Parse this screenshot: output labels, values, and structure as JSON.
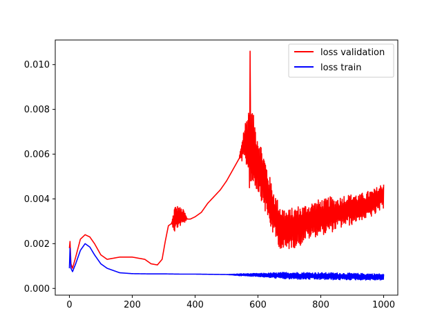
{
  "chart_data": {
    "type": "line",
    "title": "",
    "xlabel": "",
    "ylabel": "",
    "xlim": [
      -45,
      1045
    ],
    "ylim": [
      -0.0003,
      0.0111
    ],
    "xticks": [
      0,
      200,
      400,
      600,
      800,
      1000
    ],
    "xtick_labels": [
      "0",
      "200",
      "400",
      "600",
      "800",
      "1000"
    ],
    "yticks": [
      0.0,
      0.002,
      0.004,
      0.006,
      0.008,
      0.01
    ],
    "ytick_labels": [
      "0.000",
      "0.002",
      "0.004",
      "0.006",
      "0.008",
      "0.010"
    ],
    "grid": false,
    "legend_position": "top-right",
    "series": [
      {
        "name": "loss validation",
        "color": "#ff0000",
        "x": [
          0,
          2,
          5,
          10,
          20,
          35,
          50,
          65,
          80,
          100,
          120,
          140,
          160,
          180,
          200,
          220,
          240,
          260,
          280,
          295,
          305,
          315,
          325,
          335,
          345,
          355,
          365,
          375,
          385,
          400,
          420,
          440,
          460,
          480,
          500,
          520,
          540,
          555,
          565,
          575,
          585,
          595,
          605,
          615,
          625,
          635,
          645,
          655,
          665,
          675,
          685,
          695,
          705,
          715,
          725,
          735,
          745,
          755,
          765,
          775,
          785,
          795,
          805,
          815,
          825,
          835,
          845,
          855,
          865,
          875,
          885,
          895,
          905,
          915,
          925,
          935,
          945,
          955,
          965,
          975,
          985,
          995,
          1000
        ],
        "center": [
          0.0018,
          0.0021,
          0.0011,
          0.0009,
          0.0014,
          0.0022,
          0.0024,
          0.0023,
          0.002,
          0.0015,
          0.0013,
          0.00135,
          0.0014,
          0.0014,
          0.0014,
          0.00135,
          0.0013,
          0.0011,
          0.00105,
          0.0013,
          0.0021,
          0.0028,
          0.0029,
          0.0031,
          0.0032,
          0.0032,
          0.0032,
          0.0031,
          0.0031,
          0.0032,
          0.0034,
          0.0038,
          0.0041,
          0.0044,
          0.0048,
          0.0053,
          0.0058,
          0.0064,
          0.0066,
          0.0064,
          0.0062,
          0.0058,
          0.0054,
          0.005,
          0.0045,
          0.004,
          0.0036,
          0.0032,
          0.0029,
          0.0027,
          0.0026,
          0.0026,
          0.0027,
          0.0027,
          0.0028,
          0.0028,
          0.0029,
          0.003,
          0.003,
          0.0031,
          0.0031,
          0.0032,
          0.0032,
          0.0032,
          0.0033,
          0.0033,
          0.0033,
          0.0034,
          0.0034,
          0.0035,
          0.0035,
          0.0035,
          0.0036,
          0.0036,
          0.0036,
          0.0037,
          0.0037,
          0.0038,
          0.0038,
          0.0039,
          0.004,
          0.0041,
          0.0042
        ],
        "amplitude": [
          0,
          0,
          0,
          0,
          0,
          0,
          0,
          0,
          0,
          0,
          0,
          0,
          0,
          0,
          0,
          0,
          0,
          0,
          0,
          0,
          0,
          0,
          0,
          0.0006,
          0.0005,
          0.0004,
          0.0003,
          0,
          0,
          0,
          0,
          0,
          0,
          0,
          0,
          0,
          0,
          0.0008,
          0.0012,
          0.0022,
          0.0016,
          0.0014,
          0.0013,
          0.0012,
          0.0012,
          0.0011,
          0.0011,
          0.001,
          0.001,
          0.001,
          0.001,
          0.0009,
          0.0009,
          0.0009,
          0.0009,
          0.0009,
          0.0008,
          0.0008,
          0.0008,
          0.0008,
          0.0008,
          0.0008,
          0.0008,
          0.0008,
          0.0008,
          0.0008,
          0.0007,
          0.0007,
          0.0007,
          0.0007,
          0.0007,
          0.0007,
          0.0007,
          0.0006,
          0.0006,
          0.0006,
          0.0006,
          0.0006,
          0.0006,
          0.0006,
          0.0006,
          0.0006,
          0.0006
        ],
        "peak": {
          "x": 575,
          "y": 0.0106
        }
      },
      {
        "name": "loss train",
        "color": "#0000ff",
        "x": [
          0,
          2,
          5,
          10,
          20,
          35,
          50,
          65,
          80,
          100,
          120,
          140,
          160,
          180,
          200,
          250,
          300,
          350,
          400,
          450,
          500,
          550,
          600,
          650,
          700,
          750,
          800,
          850,
          900,
          950,
          1000
        ],
        "center": [
          0.0009,
          0.0018,
          0.0009,
          0.00075,
          0.0011,
          0.0017,
          0.002,
          0.00185,
          0.0015,
          0.0011,
          0.0009,
          0.0008,
          0.0007,
          0.00068,
          0.00066,
          0.00065,
          0.00065,
          0.00064,
          0.00064,
          0.00063,
          0.00062,
          0.00061,
          0.0006,
          0.00058,
          0.00057,
          0.00056,
          0.00055,
          0.00054,
          0.00053,
          0.00052,
          0.00051
        ],
        "amplitude": [
          0,
          0,
          0,
          0,
          0,
          0,
          0,
          0,
          0,
          0,
          0,
          0,
          0,
          0,
          0,
          0,
          0,
          0,
          0,
          0,
          0,
          5e-05,
          7e-05,
          0.00012,
          0.00016,
          0.00016,
          0.00016,
          0.00016,
          0.00015,
          0.00015,
          0.00014
        ]
      }
    ]
  }
}
